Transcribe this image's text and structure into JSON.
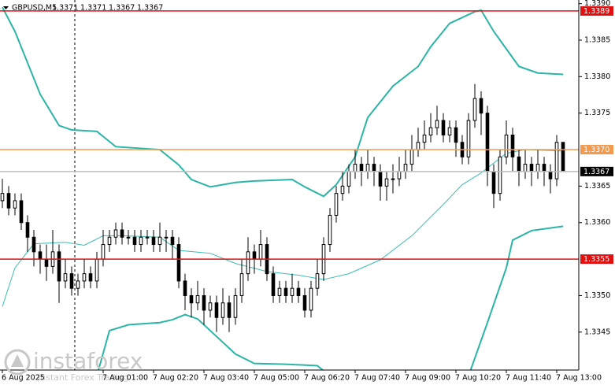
{
  "chart_data": {
    "type": "candlestick",
    "title": "GBPUSD,M5",
    "open": [
      1.3363,
      1.3364,
      1.3362,
      1.3363,
      1.336,
      1.3358,
      1.3356,
      1.3355,
      1.3354,
      1.3356,
      1.3352,
      1.3353,
      1.3351,
      1.3352,
      1.3353,
      1.3352,
      1.3355,
      1.3357,
      1.3358,
      1.3359,
      1.3358,
      1.3358,
      1.3357,
      1.3358,
      1.3358,
      1.3357,
      1.3358,
      1.3358,
      1.3357,
      1.3352,
      1.335,
      1.3349,
      1.335,
      1.3348,
      1.3349,
      1.3347,
      1.3349,
      1.3347,
      1.335,
      1.3353,
      1.3356,
      1.3355,
      1.3357,
      1.3353,
      1.335,
      1.3351,
      1.335,
      1.3351,
      1.335,
      1.3348,
      1.3351,
      1.3353,
      1.3357,
      1.3361,
      1.3364,
      1.3365,
      1.3367,
      1.3368,
      1.3367,
      1.3368,
      1.3367,
      1.3365,
      1.3366,
      1.3366,
      1.3367,
      1.3368,
      1.337,
      1.3371,
      1.3372,
      1.3373,
      1.3374,
      1.3372,
      1.3373,
      1.3371,
      1.3369,
      1.3374,
      1.3377,
      1.3375,
      1.3367,
      1.3364,
      1.3369,
      1.3372,
      1.3369,
      1.3367,
      1.3368,
      1.3367,
      1.3368,
      1.3367,
      1.3366,
      1.3371
    ],
    "high": [
      1.3366,
      1.3365,
      1.3364,
      1.3364,
      1.3361,
      1.3359,
      1.3357,
      1.3357,
      1.3359,
      1.3357,
      1.3355,
      1.3354,
      1.3353,
      1.3355,
      1.3354,
      1.3356,
      1.3359,
      1.3359,
      1.336,
      1.336,
      1.3359,
      1.3359,
      1.3359,
      1.3359,
      1.3359,
      1.336,
      1.3359,
      1.3359,
      1.3358,
      1.3353,
      1.3351,
      1.3352,
      1.3351,
      1.335,
      1.335,
      1.3351,
      1.335,
      1.3351,
      1.3355,
      1.3358,
      1.3357,
      1.3359,
      1.3358,
      1.3354,
      1.3352,
      1.3352,
      1.3353,
      1.3352,
      1.3351,
      1.3352,
      1.3355,
      1.3358,
      1.3362,
      1.3365,
      1.3367,
      1.3368,
      1.337,
      1.3369,
      1.337,
      1.3369,
      1.3368,
      1.3367,
      1.3368,
      1.3369,
      1.337,
      1.3372,
      1.3373,
      1.3374,
      1.3375,
      1.3376,
      1.3375,
      1.3374,
      1.3374,
      1.3372,
      1.3375,
      1.3379,
      1.3378,
      1.3376,
      1.3368,
      1.337,
      1.3374,
      1.3373,
      1.337,
      1.337,
      1.3369,
      1.337,
      1.3369,
      1.3368,
      1.3372,
      1.3371
    ],
    "low": [
      1.3362,
      1.3361,
      1.3361,
      1.3359,
      1.3356,
      1.3354,
      1.3353,
      1.3352,
      1.3353,
      1.3349,
      1.3351,
      1.335,
      1.335,
      1.3351,
      1.3351,
      1.3351,
      1.3354,
      1.3356,
      1.3357,
      1.3357,
      1.3357,
      1.3356,
      1.3356,
      1.3357,
      1.3356,
      1.3356,
      1.3356,
      1.3355,
      1.3351,
      1.3348,
      1.3347,
      1.3348,
      1.3346,
      1.3347,
      1.3345,
      1.3346,
      1.3345,
      1.3346,
      1.3349,
      1.3352,
      1.3353,
      1.3354,
      1.3352,
      1.3349,
      1.3349,
      1.3349,
      1.3349,
      1.3349,
      1.3347,
      1.3347,
      1.335,
      1.3352,
      1.3356,
      1.336,
      1.3363,
      1.3364,
      1.3366,
      1.3365,
      1.3366,
      1.3365,
      1.3363,
      1.3363,
      1.3364,
      1.3365,
      1.3366,
      1.3367,
      1.3369,
      1.337,
      1.3371,
      1.3372,
      1.3371,
      1.3371,
      1.3369,
      1.3368,
      1.3368,
      1.3373,
      1.3372,
      1.3365,
      1.3362,
      1.3363,
      1.3368,
      1.3367,
      1.3365,
      1.3366,
      1.3365,
      1.3366,
      1.3365,
      1.3364,
      1.3365,
      1.3367
    ],
    "close": [
      1.3364,
      1.3362,
      1.3363,
      1.336,
      1.3358,
      1.3356,
      1.3355,
      1.3354,
      1.3356,
      1.3352,
      1.3353,
      1.3351,
      1.3352,
      1.3353,
      1.3352,
      1.3355,
      1.3357,
      1.3358,
      1.3359,
      1.3358,
      1.3358,
      1.3357,
      1.3358,
      1.3358,
      1.3357,
      1.3358,
      1.3358,
      1.3357,
      1.3352,
      1.335,
      1.3349,
      1.335,
      1.3348,
      1.3349,
      1.3347,
      1.3349,
      1.3347,
      1.335,
      1.3353,
      1.3356,
      1.3355,
      1.3357,
      1.3353,
      1.335,
      1.3351,
      1.335,
      1.3351,
      1.335,
      1.3348,
      1.3351,
      1.3353,
      1.3357,
      1.3361,
      1.3364,
      1.3365,
      1.3367,
      1.3368,
      1.3367,
      1.3368,
      1.3367,
      1.3365,
      1.3366,
      1.3366,
      1.3367,
      1.3368,
      1.337,
      1.3371,
      1.3372,
      1.3373,
      1.3374,
      1.3372,
      1.3373,
      1.3371,
      1.3369,
      1.3374,
      1.3377,
      1.3375,
      1.3367,
      1.3364,
      1.3369,
      1.3372,
      1.3369,
      1.3367,
      1.3368,
      1.3367,
      1.3368,
      1.3367,
      1.3366,
      1.3371,
      1.3367
    ],
    "bands": [
      {
        "color": "#2bb5a6",
        "width": 2,
        "x": [
          0,
          2,
          6,
          9,
          11,
          15,
          18,
          25,
          28,
          30,
          33,
          37,
          40,
          46,
          48,
          51,
          53,
          56,
          58,
          62,
          66,
          68,
          71,
          75,
          76,
          78,
          82,
          85,
          89
        ],
        "values": [
          1.33895,
          1.33862,
          1.33776,
          1.33733,
          1.33727,
          1.33725,
          1.33704,
          1.337,
          1.33679,
          1.33659,
          1.33649,
          1.33655,
          1.33657,
          1.33659,
          1.33649,
          1.33636,
          1.33652,
          1.3369,
          1.33744,
          1.33787,
          1.33814,
          1.33841,
          1.33873,
          1.33889,
          1.33891,
          1.33862,
          1.33814,
          1.33805,
          1.33803
        ]
      },
      {
        "color": "#3cbcb4",
        "width": 1,
        "x": [
          0,
          2,
          5,
          10,
          13,
          16,
          19,
          25,
          28,
          33,
          37,
          42,
          47,
          51,
          55,
          60,
          65,
          70,
          73,
          76,
          80,
          83,
          89
        ],
        "values": [
          1.33485,
          1.33538,
          1.33571,
          1.33573,
          1.33569,
          1.33582,
          1.33582,
          1.3358,
          1.33562,
          1.33558,
          1.33544,
          1.33533,
          1.33528,
          1.33522,
          1.3353,
          1.33549,
          1.33582,
          1.33625,
          1.33652,
          1.33668,
          1.33695,
          1.337,
          1.33698
        ]
      },
      {
        "color": "#2bb5a6",
        "width": 2,
        "x": [
          15,
          17,
          20,
          25,
          27,
          29,
          31,
          33,
          37,
          40,
          45,
          50,
          52,
          60,
          74,
          77,
          80,
          81,
          84,
          89
        ],
        "values": [
          1.3339,
          1.33452,
          1.3346,
          1.33463,
          1.33467,
          1.33474,
          1.33468,
          1.33452,
          1.3342,
          1.33407,
          1.33406,
          1.33404,
          1.3339,
          null,
          1.3339,
          1.33463,
          1.33538,
          1.33576,
          1.33589,
          1.33595
        ]
      }
    ],
    "levels": [
      {
        "value": 1.3389,
        "color": "#e01010",
        "text_color": "#ffffff"
      },
      {
        "value": 1.337,
        "label": "1.3370",
        "color": "#f39a4e",
        "text_color": "#ffffff"
      },
      {
        "value": 1.3367,
        "color": "#bdbdbd",
        "label_bg": "#000000",
        "text_color": "#ffffff"
      },
      {
        "value": 1.3355,
        "color": "#e01010",
        "text_color": "#ffffff"
      }
    ],
    "xlim": [
      -0.375,
      91.5
    ],
    "xticks": [
      {
        "value": 0,
        "label": "6 Aug 2025"
      },
      {
        "value": 16,
        "label": "7 Aug 01:00"
      },
      {
        "value": 24,
        "label": "7 Aug 02:20"
      },
      {
        "value": 32,
        "label": "7 Aug 03:40"
      },
      {
        "value": 40,
        "label": "7 Aug 05:00"
      },
      {
        "value": 48,
        "label": "7 Aug 06:20"
      },
      {
        "value": 56,
        "label": "7 Aug 07:40"
      },
      {
        "value": 64,
        "label": "7 Aug 09:00"
      },
      {
        "value": 72,
        "label": "7 Aug 10:20"
      },
      {
        "value": 80,
        "label": "7 Aug 11:40"
      },
      {
        "value": 88,
        "label": "7 Aug 13:00"
      }
    ],
    "ylim": [
      1.33398,
      1.33905
    ],
    "yticks": [
      {
        "value": 1.339,
        "label": "1.3390"
      },
      1.3385,
      {
        "value": 1.338,
        "label": "1.3380"
      },
      1.3375,
      1.3365,
      {
        "value": 1.336,
        "label": "1.3360"
      },
      {
        "value": 1.335,
        "label": "1.3350"
      },
      1.3345
    ],
    "grid": false,
    "bull_color": "#ffffff",
    "bear_color": "#000000",
    "watermark": {
      "brand": "instaforex",
      "tagline": "Instant Forex Trading"
    }
  }
}
